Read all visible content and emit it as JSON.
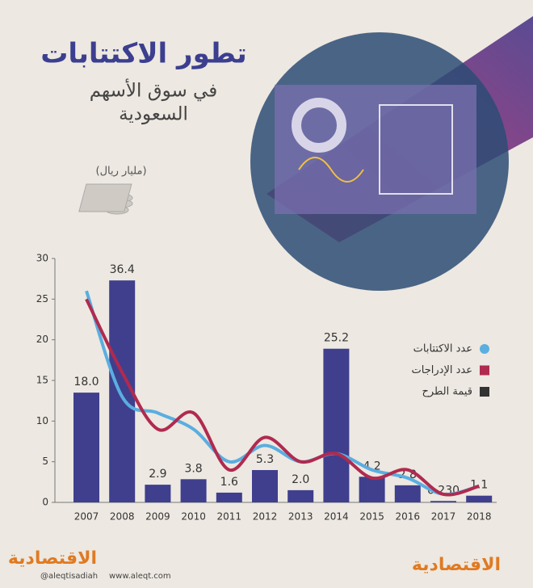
{
  "chart_data": {
    "type": "bar",
    "title": "تطور الاكتتابات",
    "subtitle": [
      "في سوق الأسهم",
      "السعودية"
    ],
    "unit_label": "(مليار ريال)",
    "categories": [
      "2007",
      "2008",
      "2009",
      "2010",
      "2011",
      "2012",
      "2013",
      "2014",
      "2015",
      "2016",
      "2017",
      "2018"
    ],
    "series": [
      {
        "name": "عدد الاكتتابات",
        "type": "line",
        "color": "#5aaee0",
        "values": [
          26,
          13,
          11,
          9,
          5,
          7,
          5,
          6,
          4,
          3,
          1,
          2
        ]
      },
      {
        "name": "عدد الإدراجات",
        "type": "line",
        "color": "#b02a4f",
        "values": [
          25,
          16,
          9,
          11,
          4,
          8,
          5,
          6,
          3,
          4,
          1,
          2
        ]
      },
      {
        "name": "قيمة الطرح",
        "type": "bar",
        "axis": "y2",
        "color": "#3f3f8e",
        "values": [
          18.0,
          36.4,
          2.9,
          3.8,
          1.6,
          5.3,
          2.0,
          25.2,
          4.2,
          2.8,
          0.23,
          1.1
        ],
        "value_labels": [
          "18.0",
          "36.4",
          "2.9",
          "3.8",
          "1.6",
          "5.3",
          "2.0",
          "25.2",
          "4.2",
          "2.8",
          "0.230",
          "1.1"
        ]
      }
    ],
    "ylim": [
      0,
      30
    ],
    "yticks": [
      0,
      5,
      10,
      15,
      20,
      25,
      30
    ],
    "y2lim": [
      0,
      40
    ],
    "grid": false
  },
  "footer": {
    "handle": "@aleqtisadiah",
    "website": "www.aleqt.com",
    "logo": "الاقتصادية"
  }
}
